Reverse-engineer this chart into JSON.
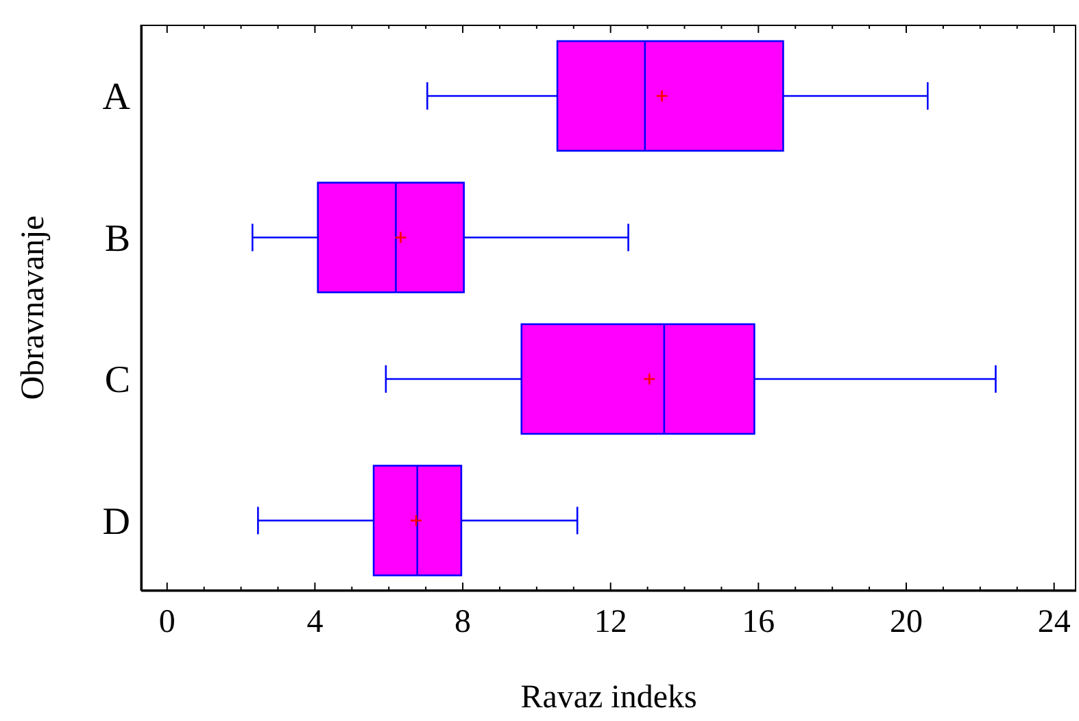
{
  "chart_data": {
    "type": "box",
    "orientation": "horizontal",
    "xlabel": "Ravaz indeks",
    "ylabel": "Obravnavanje",
    "categories": [
      "A",
      "B",
      "C",
      "D"
    ],
    "color": "#ff00ff",
    "boxes": [
      {
        "low": 7.04,
        "q1": 10.56,
        "median": 12.93,
        "q3": 16.67,
        "high": 20.58,
        "mean": 13.39
      },
      {
        "low": 2.31,
        "q1": 4.08,
        "median": 6.19,
        "q3": 8.03,
        "high": 12.48,
        "mean": 6.32
      },
      {
        "low": 5.92,
        "q1": 9.59,
        "median": 13.45,
        "q3": 15.89,
        "high": 22.42,
        "mean": 13.05
      },
      {
        "low": 2.46,
        "q1": 5.59,
        "median": 6.77,
        "q3": 7.96,
        "high": 11.1,
        "mean": 6.74
      }
    ],
    "xlim": [
      -0.7,
      24.6
    ],
    "xticks": [
      0,
      {
        "value": 1,
        "label": null
      },
      {
        "value": 2,
        "label": null
      },
      {
        "value": 3,
        "label": null
      },
      4,
      {
        "value": 5,
        "label": null
      },
      {
        "value": 6,
        "label": null
      },
      {
        "value": 7,
        "label": null
      },
      8,
      {
        "value": 9,
        "label": null
      },
      {
        "value": 10,
        "label": null
      },
      {
        "value": 11,
        "label": null
      },
      12,
      {
        "value": 13,
        "label": null
      },
      {
        "value": 14,
        "label": null
      },
      {
        "value": 15,
        "label": null
      },
      16,
      {
        "value": 17,
        "label": null
      },
      {
        "value": 18,
        "label": null
      },
      {
        "value": 19,
        "label": null
      },
      20,
      {
        "value": 21,
        "label": null
      },
      {
        "value": 22,
        "label": null
      },
      {
        "value": 23,
        "label": null
      },
      24
    ],
    "grid": false,
    "legend": false
  }
}
